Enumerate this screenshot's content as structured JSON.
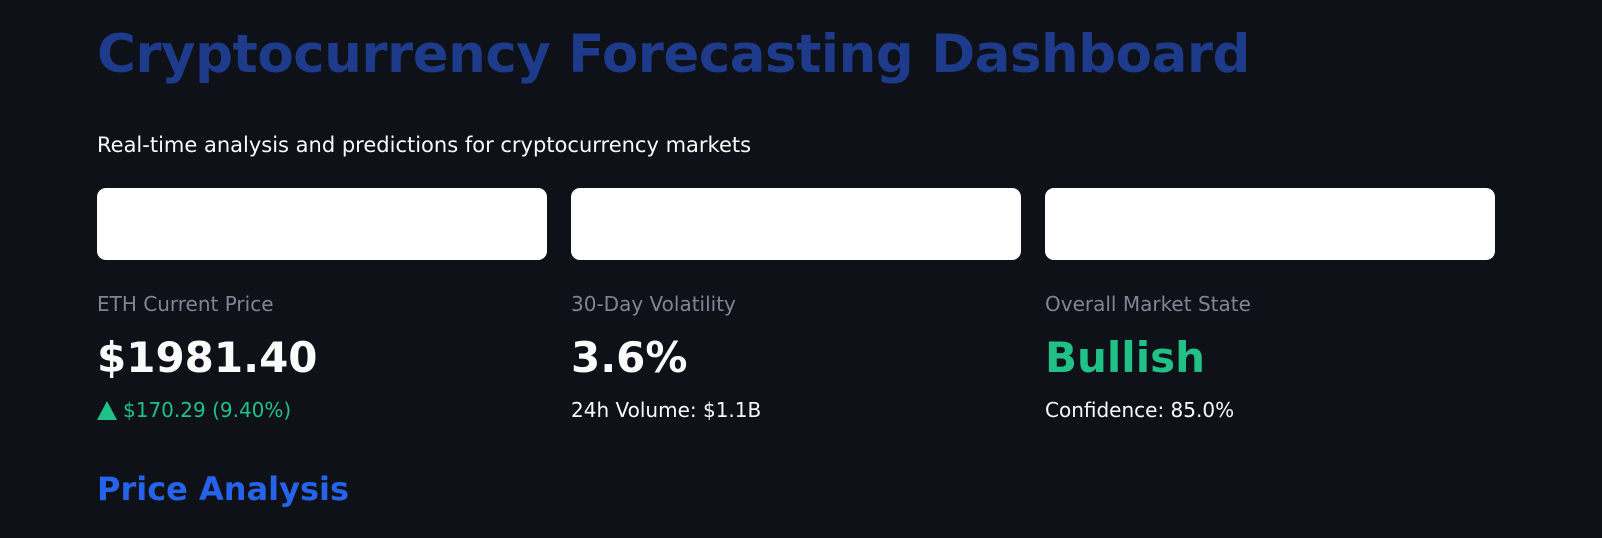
{
  "header": {
    "title": "Cryptocurrency Forecasting Dashboard",
    "subtitle": "Real-time analysis and predictions for cryptocurrency markets"
  },
  "metrics": [
    {
      "label": "ETH Current Price",
      "value": "$1981.40",
      "delta": "$170.29 (9.40%)",
      "delta_direction": "up"
    },
    {
      "label": "30-Day Volatility",
      "value": "3.6%",
      "detail": "24h Volume: $1.1B"
    },
    {
      "label": "Overall Market State",
      "value": "Bullish",
      "detail": "Confidence: 85.0%"
    }
  ],
  "section": {
    "heading": "Price Analysis"
  },
  "colors": {
    "background": "#0e1117",
    "title": "#1e3a8a",
    "section_heading": "#2563eb",
    "positive": "#21c087",
    "label_muted": "#808495",
    "text": "#fafafa"
  },
  "icons": {
    "delta": "triangle-up-icon"
  }
}
